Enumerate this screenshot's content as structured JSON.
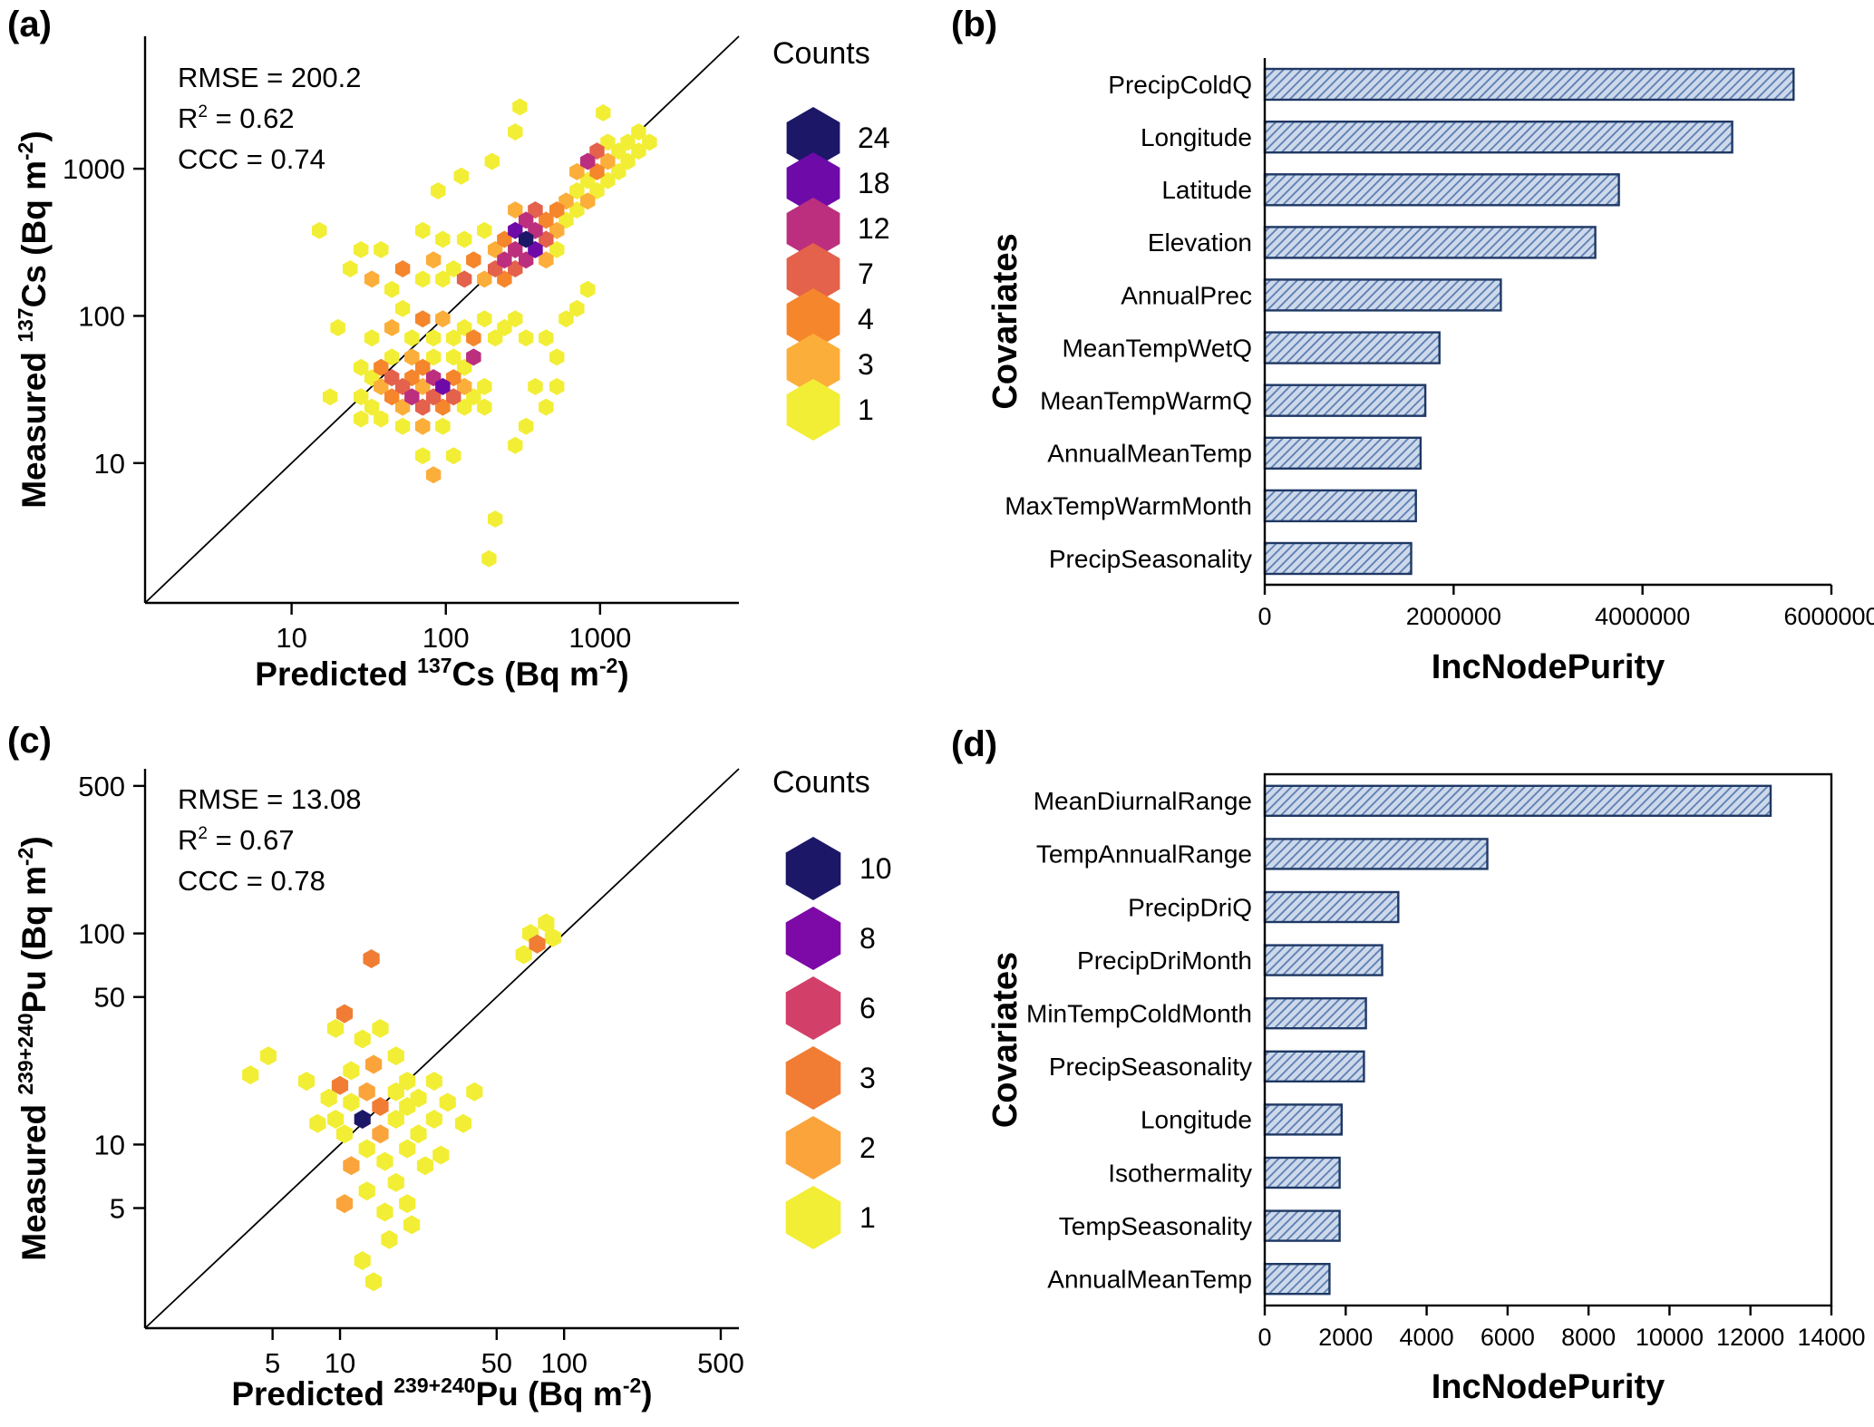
{
  "figure": {
    "background": "#ffffff",
    "panel_labels": [
      "(a)",
      "(b)",
      "(c)",
      "(d)"
    ]
  },
  "chart_data": [
    {
      "id": "a",
      "type": "hexbin",
      "panel_label": "(a)",
      "xlabel": "Predicted ^{137}Cs (Bq m^{-2})",
      "ylabel": "Measured ^{137}Cs (Bq m^{-2})",
      "scale": "log10-log10",
      "stats_lines": [
        "RMSE = 200.2",
        "R^{2} = 0.62",
        "CCC = 0.74"
      ],
      "xlim": [
        0.05,
        3.9
      ],
      "ylim": [
        0.05,
        3.9
      ],
      "xticks": [
        {
          "v": 1,
          "label": "10"
        },
        {
          "v": 2,
          "label": "100"
        },
        {
          "v": 3,
          "label": "1000"
        }
      ],
      "yticks": [
        {
          "v": 1,
          "label": "10"
        },
        {
          "v": 2,
          "label": "100"
        },
        {
          "v": 3,
          "label": "1000"
        }
      ],
      "identity_line": true,
      "legend": {
        "title": "Counts",
        "entries": [
          {
            "count": "24",
            "color": "#1c1767"
          },
          {
            "count": "18",
            "color": "#6e0aa8"
          },
          {
            "count": "12",
            "color": "#bc2f7e"
          },
          {
            "count": "7",
            "color": "#e4614b"
          },
          {
            "count": "4",
            "color": "#f5862c"
          },
          {
            "count": "3",
            "color": "#fcae3a"
          },
          {
            "count": "1",
            "color": "#f2ee35"
          }
        ]
      },
      "color_map": {
        "1": "#f2ee35",
        "3": "#fcae3a",
        "4": "#f5862c",
        "7": "#e4614b",
        "12": "#bc2f7e",
        "18": "#6e0aa8",
        "24": "#1c1767"
      },
      "points_format": [
        "log10_predicted",
        "log10_measured",
        "count_bucket"
      ],
      "points": [
        [
          1.45,
          1.45,
          1
        ],
        [
          1.52,
          1.38,
          1
        ],
        [
          1.45,
          1.65,
          1
        ],
        [
          1.45,
          1.3,
          1
        ],
        [
          1.52,
          1.58,
          1
        ],
        [
          1.58,
          1.52,
          3
        ],
        [
          1.58,
          1.3,
          1
        ],
        [
          1.58,
          1.65,
          4
        ],
        [
          1.65,
          1.45,
          4
        ],
        [
          1.65,
          1.58,
          7
        ],
        [
          1.65,
          1.72,
          1
        ],
        [
          1.72,
          1.38,
          3
        ],
        [
          1.72,
          1.52,
          7
        ],
        [
          1.72,
          1.25,
          1
        ],
        [
          1.78,
          1.45,
          12
        ],
        [
          1.78,
          1.58,
          4
        ],
        [
          1.78,
          1.72,
          3
        ],
        [
          1.85,
          1.38,
          7
        ],
        [
          1.85,
          1.52,
          3
        ],
        [
          1.85,
          1.65,
          4
        ],
        [
          1.85,
          1.25,
          3
        ],
        [
          1.92,
          1.45,
          7
        ],
        [
          1.92,
          1.58,
          12
        ],
        [
          1.92,
          1.72,
          1
        ],
        [
          1.98,
          1.38,
          4
        ],
        [
          1.98,
          1.52,
          18
        ],
        [
          1.98,
          1.25,
          1
        ],
        [
          2.05,
          1.45,
          7
        ],
        [
          2.05,
          1.58,
          4
        ],
        [
          2.05,
          1.72,
          1
        ],
        [
          2.12,
          1.52,
          3
        ],
        [
          2.12,
          1.38,
          1
        ],
        [
          2.12,
          1.65,
          1
        ],
        [
          2.18,
          1.45,
          1
        ],
        [
          2.18,
          1.72,
          12
        ],
        [
          2.25,
          1.52,
          1
        ],
        [
          2.25,
          1.38,
          1
        ],
        [
          1.52,
          1.85,
          1
        ],
        [
          1.65,
          1.92,
          3
        ],
        [
          1.78,
          1.85,
          1
        ],
        [
          1.85,
          1.98,
          4
        ],
        [
          1.92,
          1.85,
          1
        ],
        [
          1.98,
          1.98,
          3
        ],
        [
          2.05,
          1.85,
          1
        ],
        [
          2.12,
          1.92,
          1
        ],
        [
          2.18,
          1.85,
          4
        ],
        [
          2.25,
          1.98,
          1
        ],
        [
          2.32,
          1.85,
          1
        ],
        [
          2.38,
          1.92,
          1
        ],
        [
          1.72,
          2.05,
          1
        ],
        [
          2.45,
          1.98,
          1
        ],
        [
          2.52,
          1.85,
          1
        ],
        [
          2.65,
          1.85,
          1
        ],
        [
          2.78,
          1.98,
          1
        ],
        [
          2.72,
          1.72,
          1
        ],
        [
          2.85,
          2.05,
          1
        ],
        [
          2.92,
          2.18,
          1
        ],
        [
          1.18,
          2.58,
          1
        ],
        [
          1.3,
          1.92,
          1
        ],
        [
          1.25,
          1.45,
          1
        ],
        [
          1.38,
          2.32,
          1
        ],
        [
          1.52,
          2.25,
          3
        ],
        [
          1.45,
          2.45,
          1
        ],
        [
          1.65,
          2.18,
          1
        ],
        [
          1.58,
          2.45,
          1
        ],
        [
          1.72,
          2.32,
          4
        ],
        [
          1.85,
          2.25,
          1
        ],
        [
          1.92,
          2.38,
          3
        ],
        [
          1.98,
          2.25,
          1
        ],
        [
          2.05,
          2.32,
          1
        ],
        [
          2.12,
          2.25,
          7
        ],
        [
          2.18,
          2.38,
          4
        ],
        [
          2.12,
          2.52,
          1
        ],
        [
          1.98,
          2.52,
          1
        ],
        [
          1.85,
          2.58,
          1
        ],
        [
          2.25,
          2.58,
          1
        ],
        [
          2.25,
          2.25,
          3
        ],
        [
          2.32,
          2.32,
          7
        ],
        [
          2.32,
          2.45,
          3
        ],
        [
          2.38,
          2.25,
          4
        ],
        [
          2.38,
          2.38,
          12
        ],
        [
          2.38,
          2.52,
          4
        ],
        [
          2.45,
          2.32,
          7
        ],
        [
          2.45,
          2.45,
          12
        ],
        [
          2.45,
          2.58,
          18
        ],
        [
          2.45,
          2.72,
          3
        ],
        [
          2.52,
          2.38,
          12
        ],
        [
          2.52,
          2.52,
          24
        ],
        [
          2.52,
          2.65,
          12
        ],
        [
          2.58,
          2.45,
          18
        ],
        [
          2.58,
          2.58,
          12
        ],
        [
          2.58,
          2.72,
          7
        ],
        [
          2.65,
          2.52,
          7
        ],
        [
          2.65,
          2.65,
          4
        ],
        [
          2.65,
          2.38,
          3
        ],
        [
          2.72,
          2.58,
          3
        ],
        [
          2.72,
          2.72,
          4
        ],
        [
          2.72,
          2.45,
          1
        ],
        [
          2.78,
          2.65,
          1
        ],
        [
          2.78,
          2.78,
          3
        ],
        [
          2.85,
          2.72,
          1
        ],
        [
          2.85,
          2.85,
          1
        ],
        [
          2.92,
          2.78,
          3
        ],
        [
          2.92,
          2.92,
          1
        ],
        [
          2.98,
          2.85,
          1
        ],
        [
          2.85,
          2.98,
          3
        ],
        [
          2.92,
          3.05,
          12
        ],
        [
          2.98,
          2.98,
          4
        ],
        [
          2.98,
          3.12,
          7
        ],
        [
          3.05,
          2.92,
          1
        ],
        [
          3.05,
          3.05,
          3
        ],
        [
          3.05,
          3.18,
          1
        ],
        [
          3.12,
          2.98,
          1
        ],
        [
          3.12,
          3.12,
          1
        ],
        [
          3.18,
          3.05,
          1
        ],
        [
          3.18,
          3.18,
          1
        ],
        [
          3.25,
          3.12,
          1
        ],
        [
          3.25,
          3.25,
          1
        ],
        [
          3.32,
          3.18,
          1
        ],
        [
          2.48,
          3.42,
          1
        ],
        [
          3.02,
          3.38,
          1
        ],
        [
          2.45,
          3.25,
          1
        ],
        [
          2.1,
          2.95,
          1
        ],
        [
          1.95,
          2.85,
          1
        ],
        [
          2.3,
          3.05,
          1
        ],
        [
          1.85,
          1.05,
          1
        ],
        [
          1.92,
          0.92,
          3
        ],
        [
          2.05,
          1.05,
          1
        ],
        [
          2.45,
          1.12,
          1
        ],
        [
          2.32,
          0.62,
          1
        ],
        [
          2.28,
          0.35,
          1
        ],
        [
          2.52,
          1.25,
          1
        ],
        [
          2.65,
          1.38,
          1
        ],
        [
          2.58,
          1.52,
          1
        ],
        [
          2.72,
          1.52,
          1
        ]
      ]
    },
    {
      "id": "b",
      "type": "bar",
      "orientation": "horizontal",
      "panel_label": "(b)",
      "xlabel": "IncNodePurity",
      "ylabel": "Covariates",
      "categories": [
        "PrecipColdQ",
        "Longitude",
        "Latitude",
        "Elevation",
        "AnnualPrec",
        "MeanTempWetQ",
        "MeanTempWarmQ",
        "AnnualMeanTemp",
        "MaxTempWarmMonth",
        "PrecipSeasonality"
      ],
      "values": [
        5600000,
        4950000,
        3750000,
        3500000,
        2500000,
        1850000,
        1700000,
        1650000,
        1600000,
        1550000
      ],
      "xlim": [
        0,
        6000000
      ],
      "xticks": [
        {
          "v": 0,
          "label": "0"
        },
        {
          "v": 2000000,
          "label": "2000000"
        },
        {
          "v": 4000000,
          "label": "4000000"
        },
        {
          "v": 6000000,
          "label": "6000000"
        }
      ],
      "bar_fill": "#cdd9eb",
      "bar_hatch": "#5a7db0",
      "bar_border": "#1f3864",
      "frame": "axes"
    },
    {
      "id": "c",
      "type": "hexbin",
      "panel_label": "(c)",
      "xlabel": "Predicted ^{239+240}Pu (Bq m^{-2})",
      "ylabel": "Measured ^{239+240}Pu (Bq m^{-2})",
      "scale": "log10-log10",
      "stats_lines": [
        "RMSE = 13.08",
        "R^{2} = 0.67",
        "CCC = 0.78"
      ],
      "xlim": [
        0.13,
        2.78
      ],
      "ylim": [
        0.13,
        2.78
      ],
      "xticks": [
        {
          "v": 0.699,
          "label": "5"
        },
        {
          "v": 1,
          "label": "10"
        },
        {
          "v": 1.699,
          "label": "50"
        },
        {
          "v": 2,
          "label": "100"
        },
        {
          "v": 2.699,
          "label": "500"
        }
      ],
      "yticks": [
        {
          "v": 0.699,
          "label": "5"
        },
        {
          "v": 1,
          "label": "10"
        },
        {
          "v": 1.699,
          "label": "50"
        },
        {
          "v": 2,
          "label": "100"
        },
        {
          "v": 2.699,
          "label": "500"
        }
      ],
      "identity_line": true,
      "legend": {
        "title": "Counts",
        "entries": [
          {
            "count": "10",
            "color": "#1c1767"
          },
          {
            "count": "8",
            "color": "#7d09a6"
          },
          {
            "count": "6",
            "color": "#d23f69"
          },
          {
            "count": "3",
            "color": "#f07d33"
          },
          {
            "count": "2",
            "color": "#fba43c"
          },
          {
            "count": "1",
            "color": "#f2ee35"
          }
        ]
      },
      "color_map": {
        "1": "#f2ee35",
        "2": "#fba43c",
        "3": "#f07d33",
        "6": "#d23f69",
        "8": "#7d09a6",
        "10": "#1c1767"
      },
      "points_format": [
        "log10_predicted",
        "log10_measured",
        "count_bucket"
      ],
      "points": [
        [
          1.1,
          1.12,
          10
        ],
        [
          1.02,
          1.05,
          1
        ],
        [
          1.05,
          1.2,
          1
        ],
        [
          1.12,
          1.25,
          2
        ],
        [
          1.18,
          1.18,
          3
        ],
        [
          1.18,
          1.05,
          2
        ],
        [
          1.25,
          1.12,
          1
        ],
        [
          1.25,
          1.25,
          1
        ],
        [
          1.3,
          1.18,
          1
        ],
        [
          1.12,
          0.98,
          1
        ],
        [
          1.2,
          0.92,
          1
        ],
        [
          1.05,
          0.9,
          2
        ],
        [
          0.98,
          1.12,
          1
        ],
        [
          1.3,
          1.3,
          1
        ],
        [
          1.35,
          1.22,
          1
        ],
        [
          1.35,
          1.05,
          1
        ],
        [
          1.42,
          1.12,
          1
        ],
        [
          1.42,
          1.3,
          1
        ],
        [
          1.48,
          1.2,
          1
        ],
        [
          1.3,
          0.98,
          1
        ],
        [
          1.38,
          0.9,
          1
        ],
        [
          1.25,
          0.82,
          1
        ],
        [
          1.12,
          0.78,
          1
        ],
        [
          1.02,
          0.72,
          2
        ],
        [
          1.2,
          0.68,
          1
        ],
        [
          1.3,
          0.72,
          1
        ],
        [
          1.05,
          1.35,
          1
        ],
        [
          1.15,
          1.38,
          2
        ],
        [
          1.25,
          1.42,
          1
        ],
        [
          0.9,
          1.1,
          1
        ],
        [
          0.85,
          1.3,
          1
        ],
        [
          0.6,
          1.33,
          1
        ],
        [
          1.0,
          1.28,
          3
        ],
        [
          0.95,
          1.22,
          1
        ],
        [
          1.45,
          0.95,
          1
        ],
        [
          1.55,
          1.1,
          1
        ],
        [
          1.6,
          1.25,
          1
        ],
        [
          1.1,
          1.5,
          1
        ],
        [
          0.98,
          1.55,
          1
        ],
        [
          1.18,
          1.55,
          1
        ],
        [
          1.02,
          1.62,
          3
        ],
        [
          1.14,
          1.88,
          3
        ],
        [
          1.85,
          2.0,
          1
        ],
        [
          1.92,
          2.05,
          1
        ],
        [
          1.88,
          1.95,
          3
        ],
        [
          1.95,
          1.98,
          1
        ],
        [
          1.82,
          1.9,
          1
        ],
        [
          1.22,
          0.55,
          1
        ],
        [
          1.1,
          0.45,
          1
        ],
        [
          1.32,
          0.62,
          1
        ],
        [
          1.15,
          0.35,
          1
        ],
        [
          0.68,
          1.42,
          1
        ]
      ]
    },
    {
      "id": "d",
      "type": "bar",
      "orientation": "horizontal",
      "panel_label": "(d)",
      "xlabel": "IncNodePurity",
      "ylabel": "Covariates",
      "categories": [
        "MeanDiurnalRange",
        "TempAnnualRange",
        "PrecipDriQ",
        "PrecipDriMonth",
        "MinTempColdMonth",
        "PrecipSeasonality",
        "Longitude",
        "Isothermality",
        "TempSeasonality",
        "AnnualMeanTemp"
      ],
      "values": [
        12500,
        5500,
        3300,
        2900,
        2500,
        2450,
        1900,
        1850,
        1850,
        1600
      ],
      "xlim": [
        0,
        14000
      ],
      "xticks": [
        {
          "v": 0,
          "label": "0"
        },
        {
          "v": 2000,
          "label": "2000"
        },
        {
          "v": 4000,
          "label": "4000"
        },
        {
          "v": 6000,
          "label": "6000"
        },
        {
          "v": 8000,
          "label": "8000"
        },
        {
          "v": 10000,
          "label": "10000"
        },
        {
          "v": 12000,
          "label": "12000"
        },
        {
          "v": 14000,
          "label": "14000"
        }
      ],
      "bar_fill": "#cdd9eb",
      "bar_hatch": "#5a7db0",
      "bar_border": "#1f3864",
      "frame": "box"
    }
  ]
}
